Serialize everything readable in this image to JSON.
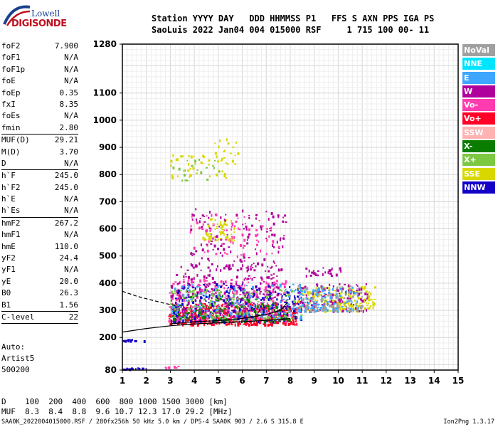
{
  "logo": {
    "line1": "Lowell",
    "line2": "DIGISONDE"
  },
  "header": {
    "line1": "Station YYYY DAY   DDD HHMMSS P1   FFS S AXN PPS IGA PS",
    "line2": "SaoLuis 2022 Jan04 004 015000 RSF     1 715 100 00- 11"
  },
  "params": [
    {
      "name": "foF2",
      "value": "7.900"
    },
    {
      "name": "foF1",
      "value": "N/A"
    },
    {
      "name": "foF1p",
      "value": "N/A"
    },
    {
      "name": "foE",
      "value": "N/A"
    },
    {
      "name": "foEp",
      "value": "0.35"
    },
    {
      "name": "fxI",
      "value": "8.35"
    },
    {
      "name": "foEs",
      "value": "N/A"
    },
    {
      "name": "fmin",
      "value": "2.80"
    },
    {
      "sep": true
    },
    {
      "name": "MUF(D)",
      "value": "29.21"
    },
    {
      "name": "M(D)",
      "value": "3.70"
    },
    {
      "name": "D",
      "value": "N/A"
    },
    {
      "sep": true
    },
    {
      "name": "h`F",
      "value": "245.0"
    },
    {
      "name": "h`F2",
      "value": "245.0"
    },
    {
      "name": "h`E",
      "value": "N/A"
    },
    {
      "name": "h`Es",
      "value": "N/A"
    },
    {
      "sep": true
    },
    {
      "name": "hmF2",
      "value": "267.2"
    },
    {
      "name": "hmF1",
      "value": "N/A"
    },
    {
      "name": "hmE",
      "value": "110.0"
    },
    {
      "name": "yF2",
      "value": "24.4"
    },
    {
      "name": "yF1",
      "value": "N/A"
    },
    {
      "name": "yE",
      "value": "20.0"
    },
    {
      "name": "B0",
      "value": "26.3"
    },
    {
      "name": "B1",
      "value": "1.56"
    },
    {
      "sep": true
    },
    {
      "name": "C-level",
      "value": "22"
    },
    {
      "sep": true
    }
  ],
  "auto": {
    "line1": "Auto:",
    "line2": "Artist5",
    "line3": "500200"
  },
  "legend": [
    {
      "label": "NoVal",
      "color": "#a0a0a0"
    },
    {
      "label": "NNE",
      "color": "#00e5ff"
    },
    {
      "label": "E",
      "color": "#3ea6ff"
    },
    {
      "label": "W",
      "color": "#b0009b"
    },
    {
      "label": "Vo-",
      "color": "#ff3bb0"
    },
    {
      "label": "Vo+",
      "color": "#ff0028"
    },
    {
      "label": "SSW",
      "color": "#ffb2b2"
    },
    {
      "label": "X-",
      "color": "#0a7d00"
    },
    {
      "label": "X+",
      "color": "#7cc843"
    },
    {
      "label": "SSE",
      "color": "#d8d800"
    },
    {
      "label": "NNW",
      "color": "#1500c8"
    }
  ],
  "bottom": {
    "d_row": "D    100  200  400  600  800 1000 1500 3000 [km]",
    "muf_row": "MUF  8.3  8.4  8.8  9.6 10.7 12.3 17.0 29.2 [MHz]"
  },
  "footer": "SAA0K_2022004015000.RSF / 280fx256h 50 kHz 5.0 km / DPS-4 SAA0K 903 / 2.6 S 315.8 E",
  "version": "Ion2Png 1.3.17",
  "chart_data": {
    "type": "scatter",
    "xlim": [
      1,
      15
    ],
    "ylim": [
      80,
      1280
    ],
    "xticks": [
      1,
      2,
      3,
      4,
      5,
      6,
      7,
      8,
      9,
      10,
      11,
      12,
      13,
      14,
      15
    ],
    "yticks": [
      80,
      200,
      300,
      400,
      500,
      600,
      700,
      800,
      900,
      1000,
      1100,
      1280
    ],
    "x_minor_step": 0.2,
    "y_gridlines": [
      80,
      100,
      120,
      140,
      160,
      180,
      200,
      220,
      240,
      260,
      280,
      300,
      320,
      340,
      360,
      380,
      400,
      420,
      440,
      460,
      480,
      500,
      520,
      540,
      560,
      580,
      600,
      620,
      640,
      660,
      680,
      700,
      720,
      740,
      760,
      780,
      800,
      820,
      840,
      860,
      880,
      900,
      920,
      940,
      960,
      980,
      1000,
      1020,
      1040,
      1060,
      1080,
      1100,
      1120,
      1140,
      1160,
      1180,
      1200,
      1220,
      1240,
      1260,
      1280
    ],
    "grid": true,
    "clusters": [
      {
        "color": "#ff0028",
        "x": [
          2.9,
          8.3
        ],
        "y": [
          250,
          330
        ],
        "n": 520
      },
      {
        "color": "#ff3bb0",
        "x": [
          2.9,
          8.0
        ],
        "y": [
          260,
          420
        ],
        "n": 300
      },
      {
        "color": "#b0009b",
        "x": [
          3.0,
          7.6
        ],
        "y": [
          280,
          470
        ],
        "n": 260
      },
      {
        "color": "#1500c8",
        "x": [
          3.0,
          8.5
        ],
        "y": [
          260,
          400
        ],
        "n": 260
      },
      {
        "color": "#3ea6ff",
        "x": [
          3.0,
          8.5
        ],
        "y": [
          270,
          400
        ],
        "n": 160
      },
      {
        "color": "#7cc843",
        "x": [
          3.0,
          8.5
        ],
        "y": [
          270,
          380
        ],
        "n": 140
      },
      {
        "color": "#0a7d00",
        "x": [
          3.0,
          8.0
        ],
        "y": [
          260,
          360
        ],
        "n": 110
      },
      {
        "color": "#d8d800",
        "x": [
          8.3,
          11.5
        ],
        "y": [
          300,
          390
        ],
        "n": 200
      },
      {
        "color": "#b0009b",
        "x": [
          8.3,
          11.2
        ],
        "y": [
          300,
          400
        ],
        "n": 120
      },
      {
        "color": "#3ea6ff",
        "x": [
          8.3,
          10.8
        ],
        "y": [
          300,
          390
        ],
        "n": 120
      },
      {
        "color": "#a0a0a0",
        "x": [
          8.3,
          11.0
        ],
        "y": [
          300,
          395
        ],
        "n": 80
      },
      {
        "color": "#b0009b",
        "x": [
          3.8,
          7.8
        ],
        "y": [
          450,
          680
        ],
        "n": 140
      },
      {
        "color": "#ff3bb0",
        "x": [
          3.8,
          7.5
        ],
        "y": [
          500,
          660
        ],
        "n": 80
      },
      {
        "color": "#d8d800",
        "x": [
          4.3,
          5.8
        ],
        "y": [
          560,
          640
        ],
        "n": 60
      },
      {
        "color": "#d8d800",
        "x": [
          3.0,
          5.3
        ],
        "y": [
          790,
          880
        ],
        "n": 40
      },
      {
        "color": "#7cc843",
        "x": [
          3.0,
          5.0
        ],
        "y": [
          780,
          860
        ],
        "n": 20
      },
      {
        "color": "#d8d800",
        "x": [
          4.8,
          5.8
        ],
        "y": [
          840,
          940
        ],
        "n": 20
      },
      {
        "color": "#b0009b",
        "x": [
          8.6,
          10.2
        ],
        "y": [
          430,
          460
        ],
        "n": 30
      },
      {
        "color": "#1500c8",
        "x": [
          1.0,
          2.0
        ],
        "y": [
          85,
          90
        ],
        "n": 18
      },
      {
        "color": "#1500c8",
        "x": [
          1.0,
          1.9
        ],
        "y": [
          190,
          195
        ],
        "n": 12
      },
      {
        "color": "#ff3bb0",
        "x": [
          2.7,
          3.3
        ],
        "y": [
          90,
          96
        ],
        "n": 8
      }
    ],
    "traces": [
      {
        "name": "",
        "color": "#000000",
        "style": "solid",
        "points": [
          [
            1.0,
            220
          ],
          [
            2.0,
            233
          ],
          [
            3.0,
            243
          ],
          [
            4.0,
            250
          ],
          [
            5.0,
            254
          ],
          [
            6.0,
            258
          ],
          [
            7.0,
            263
          ],
          [
            7.6,
            266
          ],
          [
            8.0,
            270
          ]
        ]
      },
      {
        "name": "",
        "color": "#000000",
        "style": "solid",
        "points": [
          [
            3.0,
            250
          ],
          [
            4.0,
            258
          ],
          [
            5.0,
            262
          ],
          [
            6.0,
            270
          ],
          [
            7.0,
            285
          ],
          [
            7.6,
            300
          ],
          [
            7.9,
            330
          ]
        ]
      },
      {
        "name": "",
        "color": "#000000",
        "style": "dashed",
        "points": [
          [
            1.0,
            370
          ],
          [
            1.6,
            352
          ],
          [
            2.2,
            338
          ],
          [
            2.8,
            325
          ],
          [
            3.2,
            318
          ]
        ]
      }
    ]
  }
}
